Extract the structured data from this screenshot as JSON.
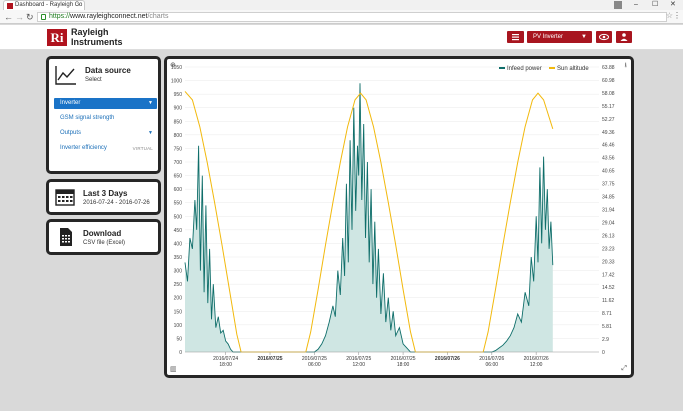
{
  "browser": {
    "tab_title": "Dashboard - Rayleigh Co",
    "tab_close": "×",
    "back": "←",
    "forward": "→",
    "reload": "↻",
    "url_scheme": "https://",
    "url_host": "www.rayleighconnect.net",
    "url_path": "/charts",
    "minimize": "–",
    "maximize": "☐",
    "close": "✕",
    "star": "☆",
    "menu": "⋮"
  },
  "header": {
    "logo_mark": "Ri",
    "logo_line1": "Rayleigh",
    "logo_line2": "Instruments",
    "device_select": "PV Inverter",
    "list_icon": "list-icon",
    "eye_icon": "eye-icon",
    "user_icon": "user-icon"
  },
  "data_source": {
    "title": "Data source",
    "subtitle": "Select",
    "items": [
      {
        "label": "Inverter",
        "active": true,
        "caret": "▼"
      },
      {
        "label": "GSM signal strength",
        "active": false
      },
      {
        "label": "Outputs",
        "active": false,
        "caret": "▼"
      },
      {
        "label": "Inverter efficiency",
        "active": false,
        "tag": "VIRTUAL"
      }
    ]
  },
  "range": {
    "title": "Last 3 Days",
    "subtitle": "2016-07-24 - 2016-07-26"
  },
  "download": {
    "title": "Download",
    "subtitle": "CSV file (Excel)"
  },
  "chart_controls": {
    "zoom": "⊕",
    "download": "⭳",
    "chart_type": "▥",
    "expand": "⤢"
  },
  "chart_data": {
    "type": "area",
    "xlabel": "",
    "ylabel": "",
    "ylim": [
      0,
      1050
    ],
    "y2lim": [
      0,
      63.88
    ],
    "yticks": [
      0,
      50,
      100,
      150,
      200,
      250,
      300,
      350,
      400,
      450,
      500,
      550,
      600,
      650,
      700,
      750,
      800,
      850,
      900,
      950,
      1000,
      1050
    ],
    "y2ticks": [
      "0",
      "2.9",
      "5.81",
      "8.71",
      "11.62",
      "14.52",
      "17.42",
      "20.33",
      "23.23",
      "26.13",
      "29.04",
      "31.94",
      "34.85",
      "37.75",
      "40.65",
      "43.56",
      "46.46",
      "49.36",
      "52.27",
      "55.17",
      "58.08",
      "60.98",
      "63.88"
    ],
    "x_start": "2016-07-24 12:30",
    "x_end": "2016-07-26 20:30",
    "xticks": [
      {
        "at": "2016-07-24 18:00",
        "l1": "2016/07/24",
        "l2": "18:00",
        "bold": false
      },
      {
        "at": "2016-07-25 00:00",
        "l1": "2016/07/25",
        "l2": "",
        "bold": true
      },
      {
        "at": "2016-07-25 06:00",
        "l1": "2016/07/25",
        "l2": "06:00",
        "bold": false
      },
      {
        "at": "2016-07-25 12:00",
        "l1": "2016/07/25",
        "l2": "12:00",
        "bold": false
      },
      {
        "at": "2016-07-25 18:00",
        "l1": "2016/07/25",
        "l2": "18:00",
        "bold": false
      },
      {
        "at": "2016-07-26 00:00",
        "l1": "2016/07/26",
        "l2": "",
        "bold": true
      },
      {
        "at": "2016-07-26 06:00",
        "l1": "2016/07/26",
        "l2": "06:00",
        "bold": false
      },
      {
        "at": "2016-07-26 12:00",
        "l1": "2016/07/26",
        "l2": "12:00",
        "bold": false
      }
    ],
    "grid": true,
    "legend_position": "top-right",
    "series": [
      {
        "name": "Infeed power",
        "color": "#0f6e6a",
        "fill": "#cfe6e3",
        "axis": "left",
        "points": [
          [
            "2016-07-24 12:30",
            330
          ],
          [
            "2016-07-24 12:50",
            260
          ],
          [
            "2016-07-24 13:10",
            420
          ],
          [
            "2016-07-24 13:30",
            380
          ],
          [
            "2016-07-24 13:50",
            560
          ],
          [
            "2016-07-24 14:05",
            450
          ],
          [
            "2016-07-24 14:20",
            760
          ],
          [
            "2016-07-24 14:35",
            300
          ],
          [
            "2016-07-24 14:50",
            650
          ],
          [
            "2016-07-24 15:05",
            220
          ],
          [
            "2016-07-24 15:20",
            540
          ],
          [
            "2016-07-24 15:35",
            180
          ],
          [
            "2016-07-24 15:50",
            380
          ],
          [
            "2016-07-24 16:05",
            120
          ],
          [
            "2016-07-24 16:20",
            250
          ],
          [
            "2016-07-24 16:40",
            90
          ],
          [
            "2016-07-24 17:00",
            130
          ],
          [
            "2016-07-24 17:20",
            70
          ],
          [
            "2016-07-24 17:40",
            80
          ],
          [
            "2016-07-24 18:00",
            40
          ],
          [
            "2016-07-24 18:20",
            30
          ],
          [
            "2016-07-24 18:40",
            10
          ],
          [
            "2016-07-24 19:00",
            0
          ],
          [
            "2016-07-25 06:00",
            0
          ],
          [
            "2016-07-25 06:30",
            10
          ],
          [
            "2016-07-25 07:00",
            30
          ],
          [
            "2016-07-25 07:30",
            60
          ],
          [
            "2016-07-25 08:00",
            110
          ],
          [
            "2016-07-25 08:30",
            170
          ],
          [
            "2016-07-25 08:50",
            130
          ],
          [
            "2016-07-25 09:10",
            300
          ],
          [
            "2016-07-25 09:30",
            210
          ],
          [
            "2016-07-25 09:50",
            420
          ],
          [
            "2016-07-25 10:05",
            280
          ],
          [
            "2016-07-25 10:20",
            620
          ],
          [
            "2016-07-25 10:35",
            330
          ],
          [
            "2016-07-25 10:50",
            780
          ],
          [
            "2016-07-25 11:05",
            450
          ],
          [
            "2016-07-25 11:20",
            900
          ],
          [
            "2016-07-25 11:35",
            520
          ],
          [
            "2016-07-25 11:50",
            760
          ],
          [
            "2016-07-25 12:00",
            650
          ],
          [
            "2016-07-25 12:10",
            990
          ],
          [
            "2016-07-25 12:25",
            560
          ],
          [
            "2016-07-25 12:40",
            840
          ],
          [
            "2016-07-25 12:55",
            420
          ],
          [
            "2016-07-25 13:10",
            700
          ],
          [
            "2016-07-25 13:25",
            330
          ],
          [
            "2016-07-25 13:40",
            600
          ],
          [
            "2016-07-25 13:55",
            250
          ],
          [
            "2016-07-25 14:10",
            480
          ],
          [
            "2016-07-25 14:25",
            200
          ],
          [
            "2016-07-25 14:40",
            380
          ],
          [
            "2016-07-25 15:00",
            140
          ],
          [
            "2016-07-25 15:20",
            290
          ],
          [
            "2016-07-25 15:40",
            110
          ],
          [
            "2016-07-25 16:00",
            200
          ],
          [
            "2016-07-25 16:20",
            80
          ],
          [
            "2016-07-25 16:40",
            150
          ],
          [
            "2016-07-25 17:00",
            60
          ],
          [
            "2016-07-25 17:30",
            90
          ],
          [
            "2016-07-25 18:00",
            30
          ],
          [
            "2016-07-25 18:30",
            15
          ],
          [
            "2016-07-25 19:00",
            0
          ],
          [
            "2016-07-26 06:00",
            0
          ],
          [
            "2016-07-26 06:30",
            5
          ],
          [
            "2016-07-26 07:00",
            15
          ],
          [
            "2016-07-26 07:30",
            25
          ],
          [
            "2016-07-26 08:00",
            40
          ],
          [
            "2016-07-26 08:30",
            60
          ],
          [
            "2016-07-26 09:00",
            90
          ],
          [
            "2016-07-26 09:30",
            140
          ],
          [
            "2016-07-26 10:00",
            110
          ],
          [
            "2016-07-26 10:30",
            220
          ],
          [
            "2016-07-26 11:00",
            170
          ],
          [
            "2016-07-26 11:20",
            350
          ],
          [
            "2016-07-26 11:40",
            260
          ],
          [
            "2016-07-26 12:00",
            500
          ],
          [
            "2016-07-26 12:15",
            330
          ],
          [
            "2016-07-26 12:30",
            680
          ],
          [
            "2016-07-26 12:45",
            400
          ],
          [
            "2016-07-26 13:00",
            720
          ],
          [
            "2016-07-26 13:15",
            450
          ],
          [
            "2016-07-26 13:30",
            600
          ],
          [
            "2016-07-26 13:45",
            380
          ],
          [
            "2016-07-26 14:00",
            480
          ],
          [
            "2016-07-26 14:15",
            320
          ]
        ]
      },
      {
        "name": "Sun altitude",
        "color": "#f2b90d",
        "axis": "right",
        "points": [
          [
            "2016-07-24 12:30",
            58.4
          ],
          [
            "2016-07-24 13:30",
            56.5
          ],
          [
            "2016-07-24 14:30",
            50.5
          ],
          [
            "2016-07-24 15:30",
            42.5
          ],
          [
            "2016-07-24 16:30",
            33.5
          ],
          [
            "2016-07-24 17:30",
            24.0
          ],
          [
            "2016-07-24 18:30",
            14.0
          ],
          [
            "2016-07-24 19:30",
            4.0
          ],
          [
            "2016-07-24 20:05",
            0
          ],
          [
            "2016-07-25 04:50",
            0
          ],
          [
            "2016-07-25 05:30",
            4.5
          ],
          [
            "2016-07-25 06:30",
            14.0
          ],
          [
            "2016-07-25 07:30",
            24.0
          ],
          [
            "2016-07-25 08:30",
            33.5
          ],
          [
            "2016-07-25 09:30",
            42.5
          ],
          [
            "2016-07-25 10:30",
            50.5
          ],
          [
            "2016-07-25 11:30",
            56.5
          ],
          [
            "2016-07-25 12:15",
            58.0
          ],
          [
            "2016-07-25 13:00",
            56.5
          ],
          [
            "2016-07-25 14:00",
            50.5
          ],
          [
            "2016-07-25 15:00",
            42.5
          ],
          [
            "2016-07-25 16:00",
            33.5
          ],
          [
            "2016-07-25 17:00",
            24.0
          ],
          [
            "2016-07-25 18:00",
            14.0
          ],
          [
            "2016-07-25 19:00",
            4.5
          ],
          [
            "2016-07-25 19:40",
            0
          ],
          [
            "2016-07-26 04:50",
            0
          ],
          [
            "2016-07-26 05:30",
            4.5
          ],
          [
            "2016-07-26 06:30",
            14.0
          ],
          [
            "2016-07-26 07:30",
            24.0
          ],
          [
            "2016-07-26 08:30",
            33.5
          ],
          [
            "2016-07-26 09:30",
            42.5
          ],
          [
            "2016-07-26 10:30",
            50.5
          ],
          [
            "2016-07-26 11:30",
            56.5
          ],
          [
            "2016-07-26 12:15",
            58.0
          ],
          [
            "2016-07-26 13:00",
            56.5
          ],
          [
            "2016-07-26 14:15",
            50.0
          ]
        ]
      }
    ]
  }
}
